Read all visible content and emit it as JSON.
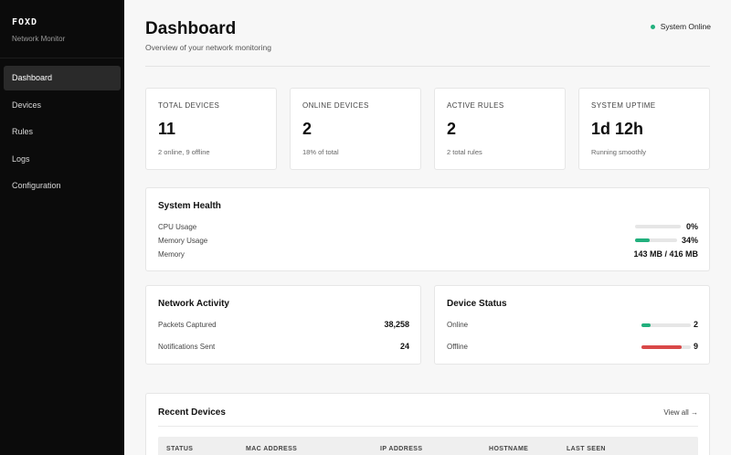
{
  "sidebar": {
    "brand": "FOXD",
    "subtitle": "Network Monitor",
    "items": [
      {
        "label": "Dashboard",
        "active": true
      },
      {
        "label": "Devices"
      },
      {
        "label": "Rules"
      },
      {
        "label": "Logs"
      },
      {
        "label": "Configuration"
      }
    ]
  },
  "header": {
    "title": "Dashboard",
    "subtitle": "Overview of your network monitoring",
    "status": "System Online",
    "status_color": "#22b07d"
  },
  "stats": [
    {
      "label": "TOTAL DEVICES",
      "value": "11",
      "note": "2 online, 9 offline"
    },
    {
      "label": "ONLINE DEVICES",
      "value": "2",
      "note": "18% of total"
    },
    {
      "label": "ACTIVE RULES",
      "value": "2",
      "note": "2 total rules"
    },
    {
      "label": "SYSTEM UPTIME",
      "value": "1d 12h",
      "note": "Running smoothly"
    }
  ],
  "health": {
    "title": "System Health",
    "cpu_label": "CPU Usage",
    "cpu_value": "0%",
    "cpu_fraction": 0,
    "memory_usage_label": "Memory Usage",
    "memory_usage_value": "34%",
    "memory_fraction": 0.34,
    "memory_label": "Memory",
    "memory_value": "143 MB / 416 MB",
    "bar_color": "#22b07d"
  },
  "network": {
    "title": "Network Activity",
    "packets_label": "Packets Captured",
    "packets_value": "38,258",
    "notifications_label": "Notifications Sent",
    "notifications_value": "24"
  },
  "device_status": {
    "title": "Device Status",
    "online_label": "Online",
    "online_value": "2",
    "online_fraction": 0.18,
    "online_color": "#22b07d",
    "offline_label": "Offline",
    "offline_value": "9",
    "offline_fraction": 0.82,
    "offline_color": "#d94848"
  },
  "recent": {
    "title": "Recent Devices",
    "view_all": "View all →",
    "columns": [
      "STATUS",
      "MAC ADDRESS",
      "IP ADDRESS",
      "HOSTNAME",
      "LAST SEEN"
    ]
  }
}
